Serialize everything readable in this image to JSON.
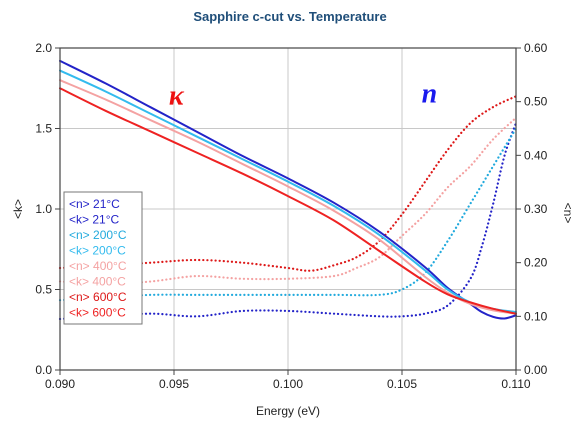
{
  "chart_data": {
    "type": "line",
    "title": "Sapphire c-cut vs. Temperature",
    "xlabel": "Energy (eV)",
    "ylabel_left": "<k>",
    "ylabel_right": "<n>",
    "xlim": [
      0.09,
      0.11
    ],
    "ylim_left": [
      0.0,
      2.0
    ],
    "ylim_right": [
      0.0,
      0.6
    ],
    "x_ticks": [
      "0.090",
      "0.095",
      "0.100",
      "0.105",
      "0.110"
    ],
    "y_left_ticks": [
      "0.0",
      "0.5",
      "1.0",
      "1.5",
      "2.0"
    ],
    "y_right_ticks": [
      "0.00",
      "0.10",
      "0.20",
      "0.30",
      "0.40",
      "0.50",
      "0.60"
    ],
    "grid": true,
    "legend_position": "bottom-left",
    "annotations": [
      {
        "text": "κ",
        "color": "#ee1111",
        "x": 0.0951,
        "y_left": 1.65
      },
      {
        "text": "n",
        "color": "#1a1aee",
        "x": 0.1062,
        "y_left": 1.66
      }
    ],
    "series": [
      {
        "name": "<n> 21°C",
        "axis": "right",
        "style": "dotted",
        "color": "#2323c8",
        "x": [
          0.09,
          0.092,
          0.094,
          0.096,
          0.098,
          0.1,
          0.102,
          0.104,
          0.105,
          0.106,
          0.107,
          0.108,
          0.1085,
          0.109,
          0.1095,
          0.11
        ],
        "y": [
          0.095,
          0.1,
          0.105,
          0.1,
          0.11,
          0.11,
          0.105,
          0.1,
          0.1,
          0.105,
          0.12,
          0.17,
          0.23,
          0.31,
          0.4,
          0.46
        ]
      },
      {
        "name": "<k> 21°C",
        "axis": "left",
        "style": "solid",
        "color": "#2323c8",
        "x": [
          0.09,
          0.092,
          0.094,
          0.096,
          0.098,
          0.1,
          0.102,
          0.104,
          0.106,
          0.107,
          0.108,
          0.1085,
          0.109,
          0.1095,
          0.11
        ],
        "y": [
          1.92,
          1.78,
          1.63,
          1.48,
          1.33,
          1.19,
          1.04,
          0.86,
          0.64,
          0.51,
          0.41,
          0.36,
          0.33,
          0.32,
          0.34
        ]
      },
      {
        "name": "<n> 200°C",
        "axis": "right",
        "style": "dotted",
        "color": "#22aadd",
        "x": [
          0.09,
          0.092,
          0.094,
          0.096,
          0.098,
          0.1,
          0.102,
          0.104,
          0.105,
          0.106,
          0.107,
          0.108,
          0.109,
          0.11
        ],
        "y": [
          0.13,
          0.135,
          0.14,
          0.14,
          0.14,
          0.14,
          0.14,
          0.14,
          0.15,
          0.18,
          0.24,
          0.31,
          0.38,
          0.45
        ]
      },
      {
        "name": "<k> 200°C",
        "axis": "left",
        "style": "solid",
        "color": "#33bbee",
        "x": [
          0.09,
          0.092,
          0.094,
          0.096,
          0.098,
          0.1,
          0.102,
          0.104,
          0.106,
          0.107,
          0.108,
          0.109,
          0.11
        ],
        "y": [
          1.86,
          1.73,
          1.59,
          1.45,
          1.31,
          1.17,
          1.02,
          0.84,
          0.62,
          0.5,
          0.42,
          0.38,
          0.36
        ]
      },
      {
        "name": "<n> 400°C",
        "axis": "right",
        "style": "dotted",
        "color": "#f4a2a2",
        "x": [
          0.09,
          0.092,
          0.094,
          0.096,
          0.098,
          0.1,
          0.102,
          0.103,
          0.104,
          0.105,
          0.106,
          0.107,
          0.108,
          0.109,
          0.11
        ],
        "y": [
          0.165,
          0.16,
          0.165,
          0.175,
          0.17,
          0.17,
          0.175,
          0.19,
          0.21,
          0.25,
          0.29,
          0.34,
          0.38,
          0.43,
          0.47
        ]
      },
      {
        "name": "<k> 400°C",
        "axis": "left",
        "style": "solid",
        "color": "#f4a2a2",
        "x": [
          0.09,
          0.092,
          0.094,
          0.096,
          0.098,
          0.1,
          0.102,
          0.104,
          0.106,
          0.107,
          0.108,
          0.109,
          0.11
        ],
        "y": [
          1.8,
          1.68,
          1.55,
          1.42,
          1.28,
          1.14,
          0.99,
          0.81,
          0.58,
          0.48,
          0.41,
          0.37,
          0.35
        ]
      },
      {
        "name": "<n> 600°C",
        "axis": "right",
        "style": "dotted",
        "color": "#dd1818",
        "x": [
          0.09,
          0.092,
          0.094,
          0.096,
          0.098,
          0.1,
          0.101,
          0.102,
          0.103,
          0.104,
          0.105,
          0.106,
          0.107,
          0.108,
          0.109,
          0.11
        ],
        "y": [
          0.19,
          0.195,
          0.2,
          0.205,
          0.2,
          0.19,
          0.185,
          0.195,
          0.21,
          0.24,
          0.29,
          0.35,
          0.41,
          0.46,
          0.49,
          0.51
        ]
      },
      {
        "name": "<k> 600°C",
        "axis": "left",
        "style": "solid",
        "color": "#ee2222",
        "x": [
          0.09,
          0.092,
          0.094,
          0.096,
          0.098,
          0.1,
          0.102,
          0.104,
          0.106,
          0.107,
          0.108,
          0.109,
          0.11
        ],
        "y": [
          1.75,
          1.61,
          1.48,
          1.35,
          1.22,
          1.08,
          0.93,
          0.74,
          0.55,
          0.47,
          0.42,
          0.38,
          0.35
        ]
      }
    ]
  }
}
